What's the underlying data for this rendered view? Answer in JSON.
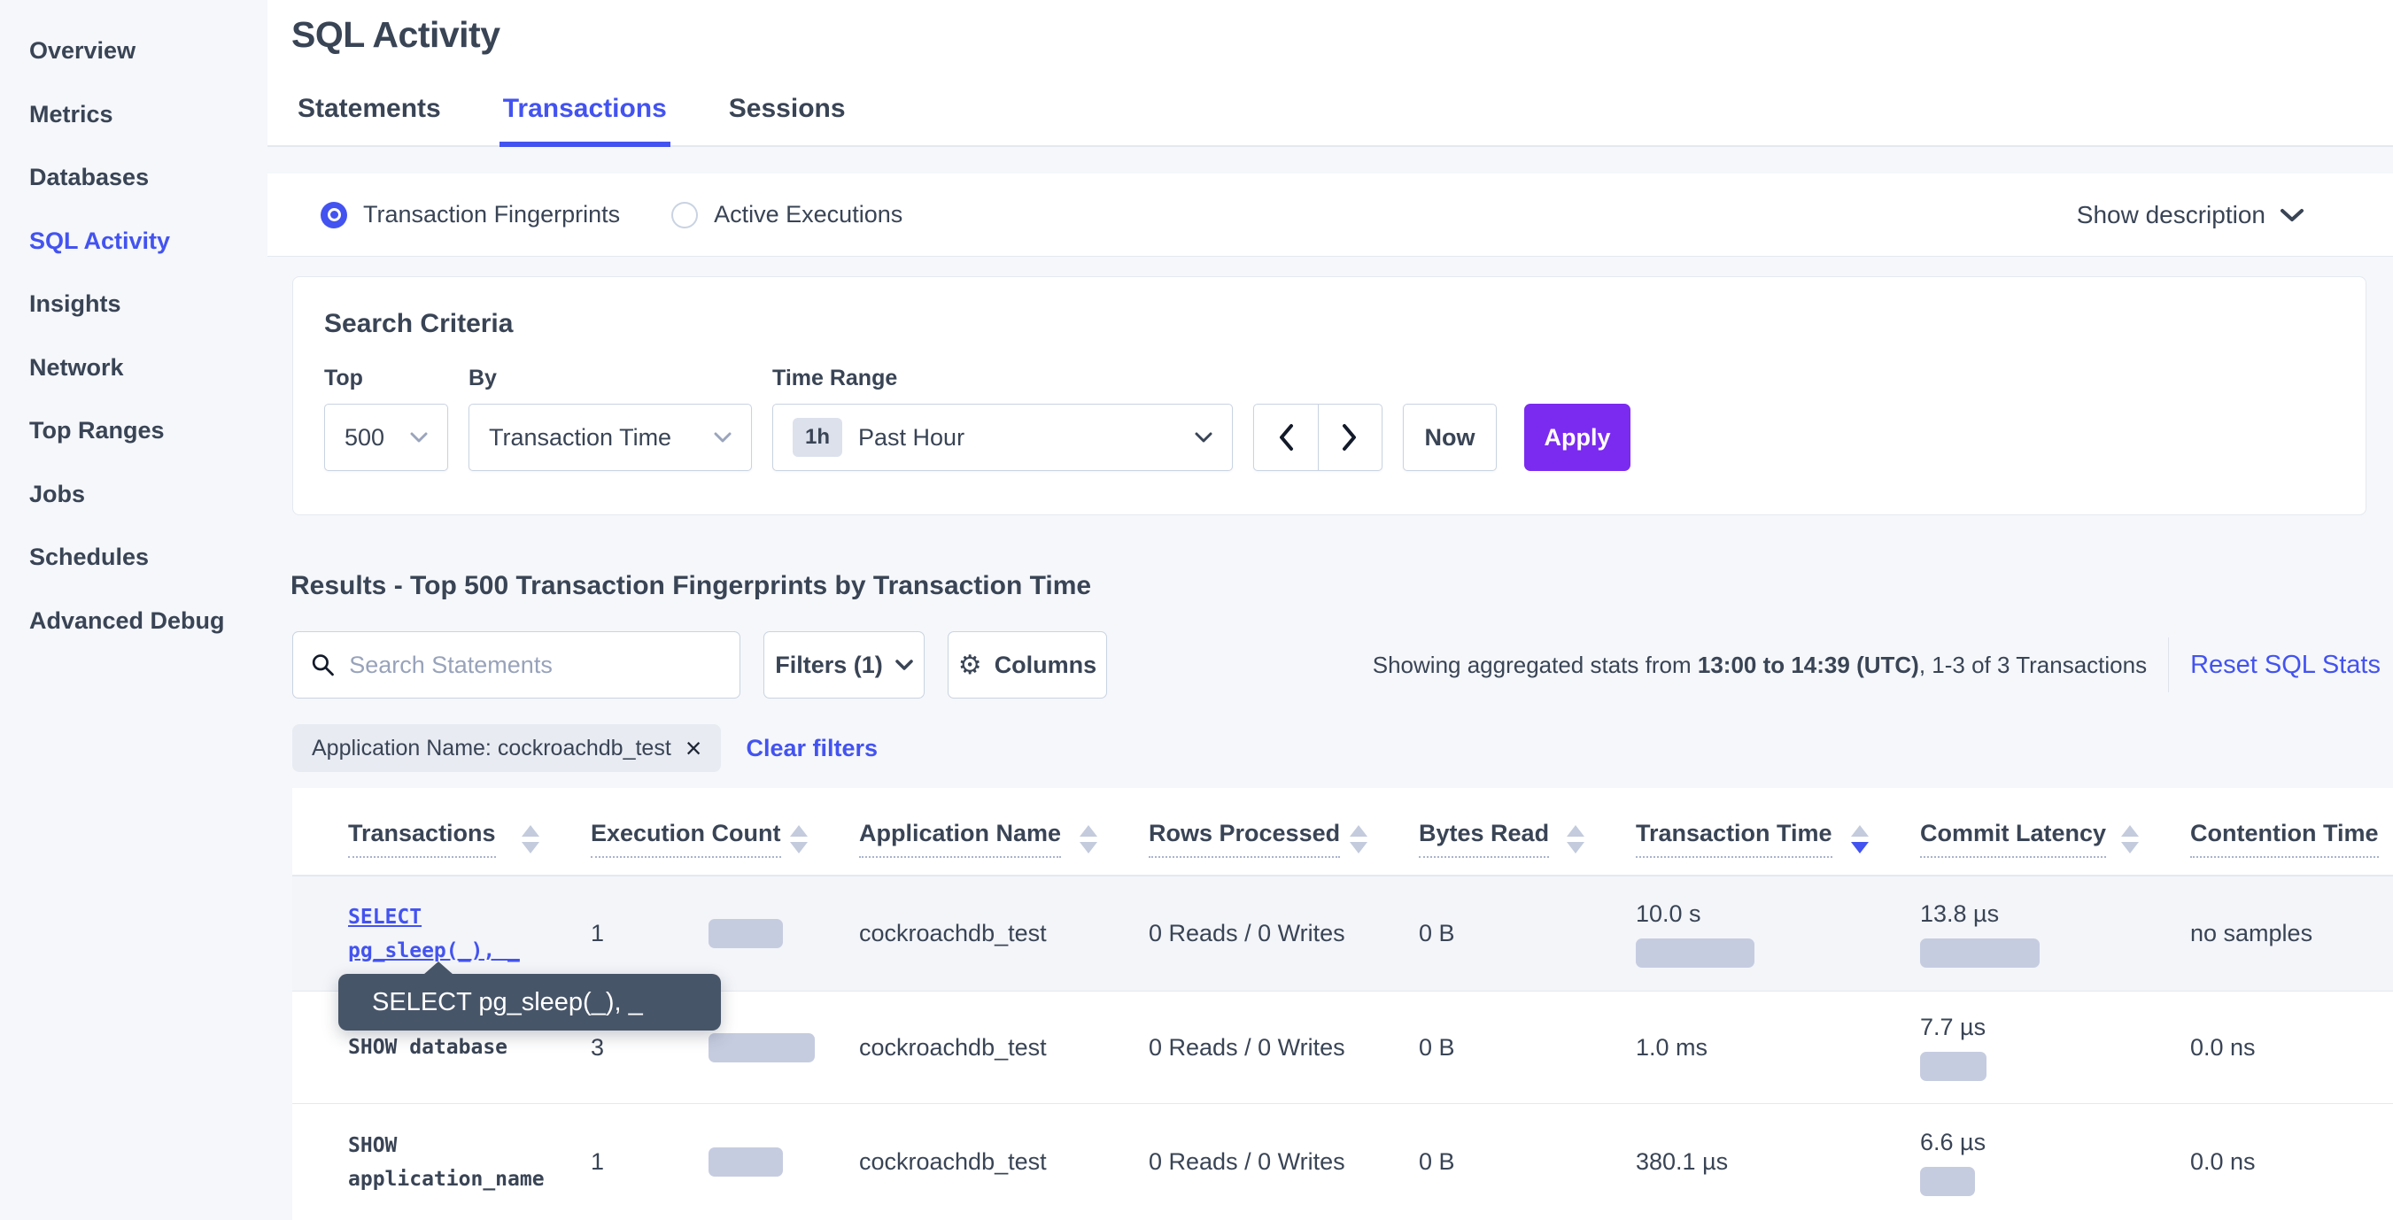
{
  "colors": {
    "accent_blue": "#4353f0",
    "apply_purple": "#7b2bf0",
    "bar_fill": "#c6cce0",
    "tooltip_bg": "#475569",
    "page_bg": "#f5f7fa"
  },
  "sidebar": {
    "items": [
      {
        "label": "Overview",
        "active": false
      },
      {
        "label": "Metrics",
        "active": false
      },
      {
        "label": "Databases",
        "active": false
      },
      {
        "label": "SQL Activity",
        "active": true
      },
      {
        "label": "Insights",
        "active": false
      },
      {
        "label": "Network",
        "active": false
      },
      {
        "label": "Top Ranges",
        "active": false
      },
      {
        "label": "Jobs",
        "active": false
      },
      {
        "label": "Schedules",
        "active": false
      },
      {
        "label": "Advanced Debug",
        "active": false
      }
    ]
  },
  "header": {
    "title": "SQL Activity",
    "tabs": [
      {
        "label": "Statements",
        "active": false
      },
      {
        "label": "Transactions",
        "active": true
      },
      {
        "label": "Sessions",
        "active": false
      }
    ]
  },
  "toggle": {
    "options": [
      {
        "label": "Transaction Fingerprints",
        "selected": true
      },
      {
        "label": "Active Executions",
        "selected": false
      }
    ],
    "show_description": "Show description"
  },
  "criteria": {
    "heading": "Search Criteria",
    "top": {
      "label": "Top",
      "value": "500"
    },
    "by": {
      "label": "By",
      "value": "Transaction Time"
    },
    "time_range": {
      "label": "Time Range",
      "badge": "1h",
      "value": "Past Hour"
    },
    "now_label": "Now",
    "apply_label": "Apply"
  },
  "results": {
    "heading": "Results - Top 500 Transaction Fingerprints by Transaction Time",
    "search_placeholder": "Search Statements",
    "filters_label": "Filters (1)",
    "columns_label": "Columns",
    "stats": {
      "prefix": "Showing aggregated stats from ",
      "bold": "13:00 to 14:39 (UTC)",
      "suffix": ", 1-3 of 3 Transactions"
    },
    "reset_label": "Reset SQL Stats",
    "chip_label": "Application Name: cockroachdb_test",
    "clear_filters_label": "Clear filters"
  },
  "table": {
    "columns": [
      {
        "label": "Transactions",
        "sort": "none"
      },
      {
        "label": "Execution Count",
        "sort": "none"
      },
      {
        "label": "Application Name",
        "sort": "none"
      },
      {
        "label": "Rows Processed",
        "sort": "none"
      },
      {
        "label": "Bytes Read",
        "sort": "none"
      },
      {
        "label": "Transaction Time",
        "sort": "desc"
      },
      {
        "label": "Commit Latency",
        "sort": "none"
      },
      {
        "label": "Contention Time",
        "sort": "hidden"
      }
    ],
    "rows": [
      {
        "transaction": [
          "SELECT",
          "pg_sleep(_), _"
        ],
        "link": true,
        "highlighted": true,
        "execution_count": "1",
        "execution_bar": 84,
        "app_name": "cockroachdb_test",
        "rows_processed": "0 Reads / 0 Writes",
        "bytes_read": "0 B",
        "transaction_time": "10.0 s",
        "transaction_time_bar": 134,
        "commit_latency": "13.8 µs",
        "commit_latency_bar": 135,
        "contention_time": "no samples"
      },
      {
        "transaction": [
          "SHOW database"
        ],
        "link": false,
        "highlighted": false,
        "execution_count": "3",
        "execution_bar": 120,
        "app_name": "cockroachdb_test",
        "rows_processed": "0 Reads / 0 Writes",
        "bytes_read": "0 B",
        "transaction_time": "1.0 ms",
        "transaction_time_bar": 0,
        "commit_latency": "7.7 µs",
        "commit_latency_bar": 75,
        "contention_time": "0.0 ns"
      },
      {
        "transaction": [
          "SHOW",
          "application_name"
        ],
        "link": false,
        "highlighted": false,
        "execution_count": "1",
        "execution_bar": 84,
        "app_name": "cockroachdb_test",
        "rows_processed": "0 Reads / 0 Writes",
        "bytes_read": "0 B",
        "transaction_time": "380.1 µs",
        "transaction_time_bar": 0,
        "commit_latency": "6.6 µs",
        "commit_latency_bar": 62,
        "contention_time": "0.0 ns"
      }
    ]
  },
  "tooltip": {
    "text": "SELECT pg_sleep(_), _"
  }
}
